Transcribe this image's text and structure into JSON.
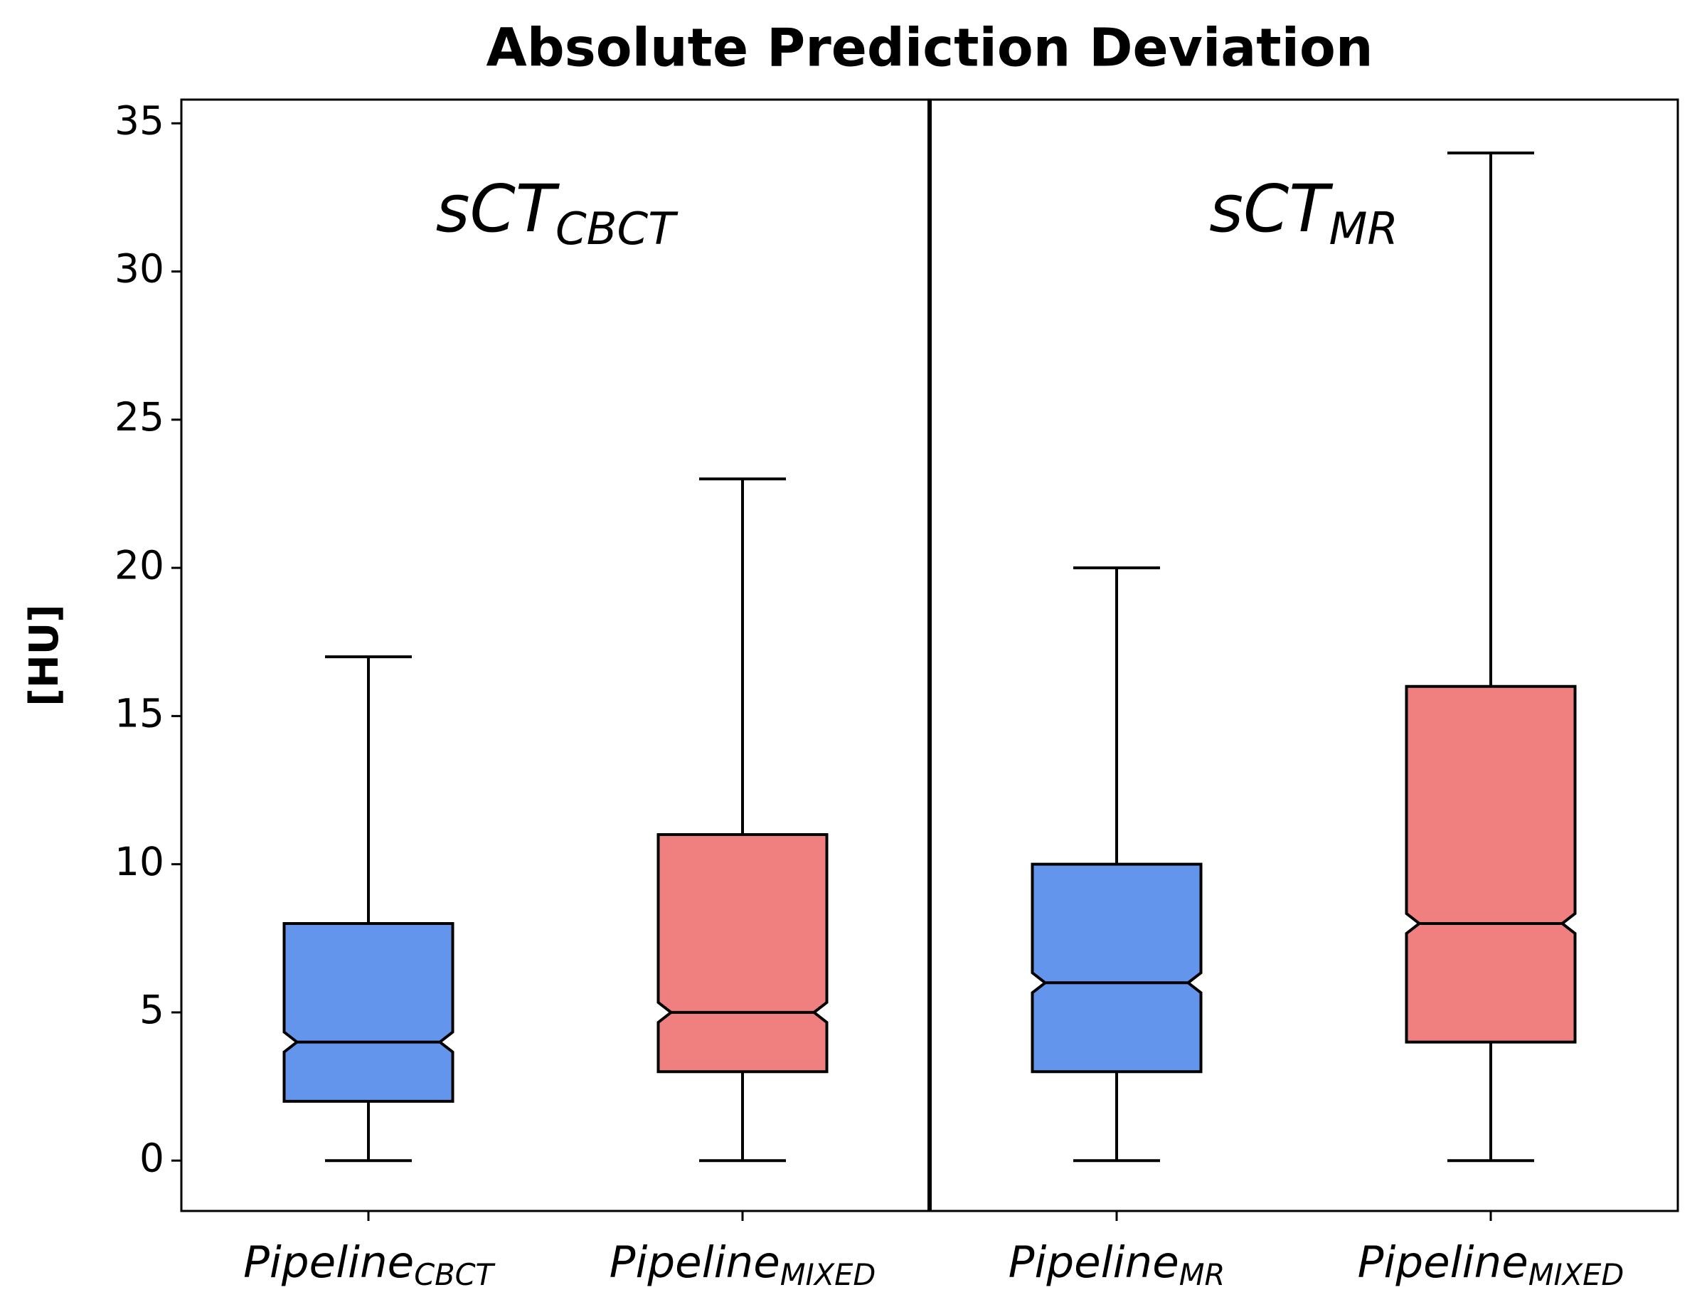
{
  "chart_data": {
    "type": "box",
    "title": "Absolute Prediction Deviation",
    "y_label": "[HU]",
    "categories": [
      {
        "main": "Pipeline",
        "sub": "CBCT"
      },
      {
        "main": "Pipeline",
        "sub": "MIXED"
      },
      {
        "main": "Pipeline",
        "sub": "MR"
      },
      {
        "main": "Pipeline",
        "sub": "MIXED"
      }
    ],
    "boxes": [
      {
        "whislo": 0,
        "q1": 2,
        "med": 4,
        "q3": 8,
        "whishi": 17
      },
      {
        "whislo": 0,
        "q1": 3,
        "med": 5,
        "q3": 11,
        "whishi": 23
      },
      {
        "whislo": 0,
        "q1": 3,
        "med": 6,
        "q3": 10,
        "whishi": 20
      },
      {
        "whislo": 0,
        "q1": 4,
        "med": 8,
        "q3": 16,
        "whishi": 34
      }
    ],
    "colors": [
      "#6495ed",
      "#f08080",
      "#6495ed",
      "#f08080"
    ],
    "panels": [
      {
        "main": "sCT",
        "sub": "CBCT"
      },
      {
        "main": "sCT",
        "sub": "MR"
      }
    ],
    "ylim": [
      -1.7,
      35.8
    ],
    "yticks": [
      0,
      5,
      10,
      15,
      20,
      25,
      30,
      35
    ]
  }
}
